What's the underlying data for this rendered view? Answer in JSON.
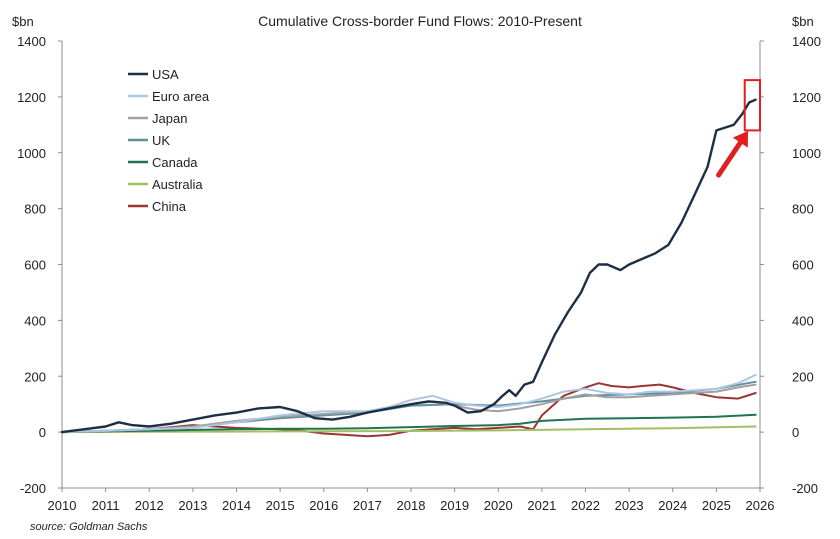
{
  "chart_data": {
    "type": "line",
    "title": "Cumulative Cross-border Fund Flows: 2010-Present",
    "ylabel_left": "$bn",
    "ylabel_right": "$bn",
    "source": "source: Goldman Sachs",
    "ylim": [
      -200,
      1400
    ],
    "xlim": [
      2010,
      2026
    ],
    "yticks_left": [
      "-200",
      "0",
      "200",
      "400",
      "600",
      "800",
      "1000",
      "1200",
      "1400"
    ],
    "yticks_right": [
      "-200",
      "0",
      "200",
      "400",
      "600",
      "800",
      "1000",
      "1200",
      "1400"
    ],
    "xticks": [
      "2010",
      "2011",
      "2012",
      "2013",
      "2014",
      "2015",
      "2016",
      "2017",
      "2018",
      "2019",
      "2020",
      "2021",
      "2022",
      "2023",
      "2024",
      "2025",
      "2026"
    ],
    "legend_position": "top-left",
    "grid": false,
    "annotation": {
      "type": "highlight-box-with-arrow",
      "x_range": [
        2025.65,
        2026.0
      ],
      "y_range": [
        1080,
        1260
      ],
      "color": "#e02020"
    },
    "series": [
      {
        "name": "USA",
        "color": "#1c2f45",
        "x": [
          2010,
          2010.5,
          2011,
          2011.3,
          2011.6,
          2012,
          2012.5,
          2013,
          2013.5,
          2014,
          2014.5,
          2015,
          2015.4,
          2015.8,
          2016.2,
          2016.6,
          2017,
          2017.5,
          2018,
          2018.4,
          2018.8,
          2019,
          2019.3,
          2019.6,
          2019.9,
          2020.1,
          2020.25,
          2020.4,
          2020.6,
          2020.8,
          2021,
          2021.3,
          2021.6,
          2021.9,
          2022.1,
          2022.3,
          2022.5,
          2022.8,
          2023,
          2023.3,
          2023.6,
          2023.9,
          2024.2,
          2024.5,
          2024.8,
          2025.0,
          2025.2,
          2025.4,
          2025.6,
          2025.75,
          2025.9
        ],
        "values": [
          0,
          10,
          20,
          35,
          25,
          20,
          30,
          45,
          60,
          70,
          85,
          90,
          75,
          50,
          45,
          55,
          70,
          85,
          100,
          110,
          105,
          95,
          70,
          75,
          100,
          130,
          150,
          130,
          170,
          180,
          250,
          350,
          430,
          500,
          570,
          600,
          600,
          580,
          600,
          620,
          640,
          670,
          750,
          850,
          950,
          1080,
          1090,
          1100,
          1140,
          1180,
          1190
        ]
      },
      {
        "name": "Euro area",
        "color": "#adc6e3",
        "x": [
          2010,
          2011,
          2012,
          2013,
          2014,
          2015,
          2016,
          2017,
          2017.5,
          2018,
          2018.5,
          2019,
          2019.5,
          2020,
          2020.5,
          2021,
          2021.5,
          2022,
          2022.5,
          2023,
          2023.5,
          2024,
          2024.5,
          2025,
          2025.5,
          2025.9
        ],
        "values": [
          0,
          5,
          10,
          15,
          35,
          60,
          75,
          75,
          90,
          115,
          130,
          105,
          95,
          90,
          100,
          120,
          145,
          155,
          140,
          135,
          145,
          145,
          150,
          155,
          175,
          205
        ]
      },
      {
        "name": "Japan",
        "color": "#a0a0a0",
        "x": [
          2010,
          2011,
          2012,
          2013,
          2014,
          2015,
          2016,
          2017,
          2018,
          2018.5,
          2019,
          2019.5,
          2020,
          2020.5,
          2021,
          2021.5,
          2022,
          2022.5,
          2023,
          2023.5,
          2024,
          2024.5,
          2025,
          2025.5,
          2025.9
        ],
        "values": [
          0,
          5,
          10,
          20,
          40,
          55,
          65,
          75,
          100,
          110,
          95,
          80,
          75,
          85,
          100,
          120,
          135,
          125,
          125,
          130,
          135,
          140,
          145,
          160,
          170
        ]
      },
      {
        "name": "UK",
        "color": "#5f8fa3",
        "x": [
          2010,
          2011,
          2012,
          2013,
          2014,
          2015,
          2016,
          2017,
          2018,
          2019,
          2020,
          2021,
          2022,
          2023,
          2024,
          2025,
          2025.9
        ],
        "values": [
          0,
          5,
          10,
          20,
          35,
          50,
          60,
          70,
          95,
          100,
          95,
          110,
          130,
          135,
          140,
          155,
          180
        ]
      },
      {
        "name": "Canada",
        "color": "#1e7550",
        "x": [
          2010,
          2011,
          2012,
          2013,
          2014,
          2015,
          2016,
          2017,
          2018,
          2019,
          2020,
          2020.5,
          2021,
          2022,
          2023,
          2024,
          2025,
          2025.9
        ],
        "values": [
          0,
          3,
          5,
          8,
          10,
          12,
          12,
          14,
          18,
          22,
          25,
          30,
          40,
          48,
          50,
          52,
          55,
          62
        ]
      },
      {
        "name": "Australia",
        "color": "#a3bf63",
        "x": [
          2010,
          2012,
          2014,
          2016,
          2018,
          2020,
          2022,
          2024,
          2025.9
        ],
        "values": [
          0,
          1,
          2,
          3,
          4,
          6,
          10,
          14,
          20
        ]
      },
      {
        "name": "China",
        "color": "#9b3532",
        "x": [
          2010,
          2011,
          2012,
          2013,
          2013.5,
          2014,
          2015,
          2015.5,
          2016,
          2016.5,
          2017,
          2017.5,
          2018,
          2018.5,
          2019,
          2019.5,
          2020,
          2020.5,
          2020.8,
          2021,
          2021.5,
          2022,
          2022.3,
          2022.6,
          2023,
          2023.3,
          2023.7,
          2024,
          2024.5,
          2025,
          2025.5,
          2025.9
        ],
        "values": [
          0,
          5,
          10,
          25,
          20,
          15,
          10,
          5,
          -5,
          -10,
          -15,
          -10,
          5,
          10,
          15,
          10,
          15,
          20,
          10,
          60,
          130,
          160,
          175,
          165,
          160,
          165,
          170,
          160,
          140,
          125,
          120,
          140
        ]
      }
    ]
  }
}
